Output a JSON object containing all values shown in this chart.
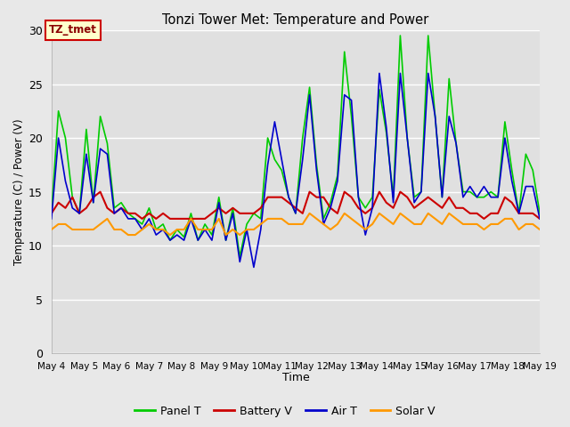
{
  "title": "Tonzi Tower Met: Temperature and Power",
  "xlabel": "Time",
  "ylabel": "Temperature (C) / Power (V)",
  "ylim": [
    0,
    30
  ],
  "yticks": [
    0,
    5,
    10,
    15,
    20,
    25,
    30
  ],
  "x_labels": [
    "May 4",
    "May 5",
    "May 6",
    "May 7",
    "May 8",
    "May 9",
    "May 10",
    "May 11",
    "May 12",
    "May 13",
    "May 14",
    "May 15",
    "May 16",
    "May 17",
    "May 18",
    "May 19"
  ],
  "annotation_text": "TZ_tmet",
  "annotation_bg": "#ffffcc",
  "annotation_border": "#cc0000",
  "legend_entries": [
    "Panel T",
    "Battery V",
    "Air T",
    "Solar V"
  ],
  "legend_colors": [
    "#00cc00",
    "#cc0000",
    "#0000cc",
    "#ff9900"
  ],
  "fig_bg": "#e8e8e8",
  "plot_bg": "#e0e0e0",
  "grid_color": "#ffffff",
  "panel_t": [
    13.0,
    22.5,
    20.0,
    14.5,
    13.0,
    20.8,
    14.0,
    22.0,
    19.5,
    13.5,
    14.0,
    13.0,
    12.5,
    12.0,
    13.5,
    11.5,
    12.0,
    10.5,
    11.5,
    10.8,
    13.0,
    10.5,
    12.0,
    11.0,
    14.5,
    10.5,
    13.5,
    9.0,
    12.0,
    13.0,
    12.5,
    20.0,
    18.0,
    17.0,
    14.5,
    13.0,
    20.0,
    24.7,
    17.5,
    12.5,
    14.0,
    16.5,
    28.0,
    22.0,
    14.5,
    13.5,
    14.5,
    24.5,
    20.5,
    14.5,
    29.5,
    20.0,
    14.5,
    15.0,
    29.5,
    22.0,
    14.5,
    25.5,
    19.5,
    15.0,
    15.0,
    14.5,
    14.5,
    15.0,
    14.5,
    21.5,
    17.0,
    13.0,
    18.5,
    17.0,
    13.0
  ],
  "battery_v": [
    13.0,
    14.0,
    13.5,
    14.5,
    13.0,
    13.5,
    14.5,
    15.0,
    13.5,
    13.0,
    13.5,
    13.0,
    13.0,
    12.5,
    13.0,
    12.5,
    13.0,
    12.5,
    12.5,
    12.5,
    12.5,
    12.5,
    12.5,
    13.0,
    13.5,
    13.0,
    13.5,
    13.0,
    13.0,
    13.0,
    13.5,
    14.5,
    14.5,
    14.5,
    14.0,
    13.5,
    13.0,
    15.0,
    14.5,
    14.5,
    13.5,
    13.0,
    15.0,
    14.5,
    13.5,
    13.0,
    13.5,
    15.0,
    14.0,
    13.5,
    15.0,
    14.5,
    13.5,
    14.0,
    14.5,
    14.0,
    13.5,
    14.5,
    13.5,
    13.5,
    13.0,
    13.0,
    12.5,
    13.0,
    13.0,
    14.5,
    14.0,
    13.0,
    13.0,
    13.0,
    12.5
  ],
  "air_t": [
    12.5,
    20.0,
    16.0,
    13.5,
    13.0,
    18.5,
    14.0,
    19.0,
    18.5,
    13.0,
    13.5,
    12.5,
    12.5,
    11.5,
    12.5,
    11.0,
    11.5,
    10.5,
    11.0,
    10.5,
    12.5,
    10.5,
    11.5,
    10.5,
    14.0,
    10.5,
    13.0,
    8.5,
    11.5,
    8.0,
    11.5,
    17.5,
    21.5,
    18.0,
    14.5,
    13.0,
    18.0,
    24.0,
    17.0,
    12.0,
    13.5,
    16.0,
    24.0,
    23.5,
    14.5,
    11.0,
    13.5,
    26.0,
    21.0,
    14.0,
    26.0,
    20.0,
    14.0,
    15.0,
    26.0,
    22.0,
    14.5,
    22.0,
    19.5,
    14.5,
    15.5,
    14.5,
    15.5,
    14.5,
    14.5,
    20.0,
    16.0,
    13.0,
    15.5,
    15.5,
    12.5
  ],
  "solar_v": [
    11.5,
    12.0,
    12.0,
    11.5,
    11.5,
    11.5,
    11.5,
    12.0,
    12.5,
    11.5,
    11.5,
    11.0,
    11.0,
    11.5,
    12.0,
    11.5,
    11.5,
    11.0,
    11.5,
    11.5,
    12.5,
    11.5,
    11.5,
    11.5,
    12.5,
    11.0,
    11.5,
    11.0,
    11.5,
    11.5,
    12.0,
    12.5,
    12.5,
    12.5,
    12.0,
    12.0,
    12.0,
    13.0,
    12.5,
    12.0,
    11.5,
    12.0,
    13.0,
    12.5,
    12.0,
    11.5,
    12.0,
    13.0,
    12.5,
    12.0,
    13.0,
    12.5,
    12.0,
    12.0,
    13.0,
    12.5,
    12.0,
    13.0,
    12.5,
    12.0,
    12.0,
    12.0,
    11.5,
    12.0,
    12.0,
    12.5,
    12.5,
    11.5,
    12.0,
    12.0,
    11.5
  ]
}
